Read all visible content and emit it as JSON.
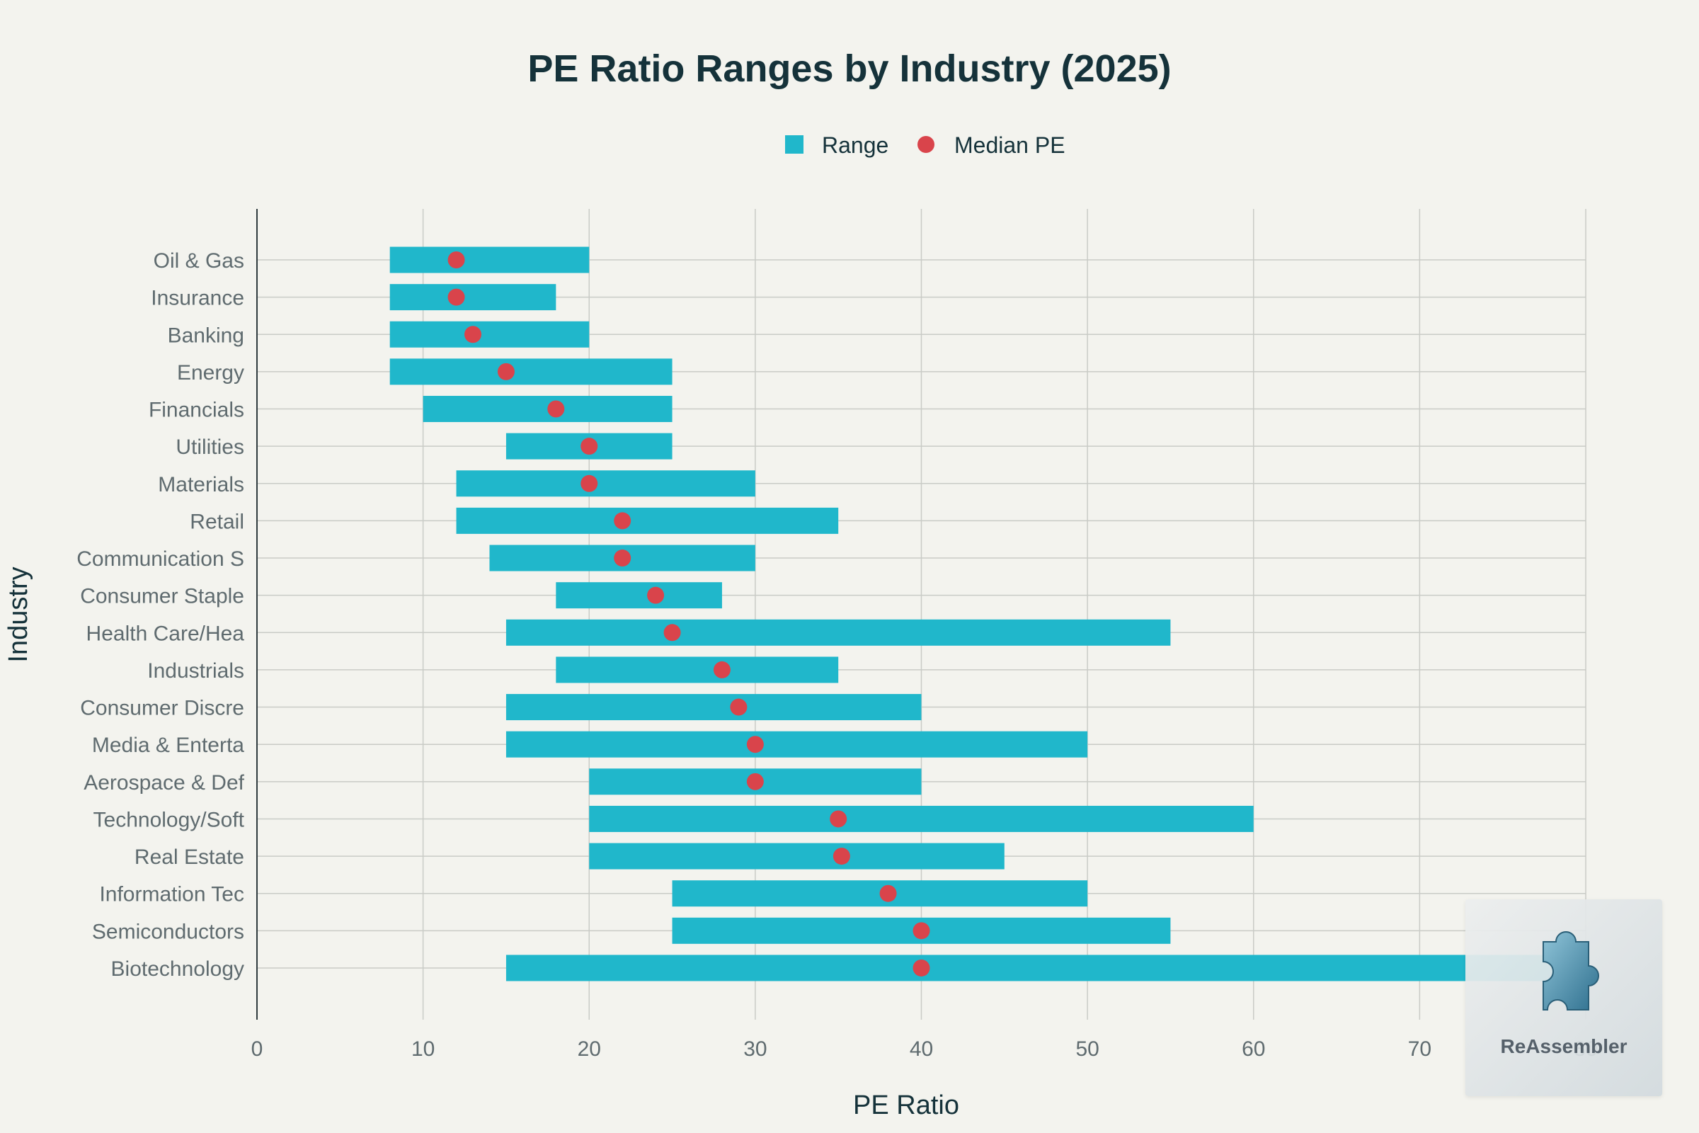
{
  "chart_data": {
    "type": "bar",
    "subtype": "horizontal-range-with-median",
    "title": "PE Ratio Ranges by Industry (2025)",
    "xlabel": "PE Ratio",
    "ylabel": "Industry",
    "xlim": [
      0,
      80
    ],
    "xticks": [
      0,
      10,
      20,
      30,
      40,
      50,
      60,
      70,
      80
    ],
    "grid": true,
    "legend_position": "top-center",
    "legend": [
      {
        "label": "Range",
        "marker": "square",
        "color": "#20b7cb"
      },
      {
        "label": "Median PE",
        "marker": "circle",
        "color": "#d9444b"
      }
    ],
    "categories": [
      "Oil & Gas",
      "Insurance",
      "Banking",
      "Energy",
      "Financials",
      "Utilities",
      "Materials",
      "Retail",
      "Communication S",
      "Consumer Staple",
      "Health Care/Hea",
      "Industrials",
      "Consumer Discre",
      "Media & Enterta",
      "Aerospace & Def",
      "Technology/Soft",
      "Real Estate",
      "Information Tec",
      "Semiconductors",
      "Biotechnology"
    ],
    "series": [
      {
        "name": "Range",
        "color": "#20b7cb",
        "low": [
          8,
          8,
          8,
          8,
          10,
          15,
          12,
          12,
          14,
          18,
          15,
          18,
          15,
          15,
          20,
          20,
          20,
          25,
          25,
          15
        ],
        "high": [
          20,
          18,
          20,
          25,
          25,
          25,
          30,
          35,
          30,
          28,
          55,
          35,
          40,
          50,
          40,
          60,
          45,
          50,
          55,
          80
        ]
      },
      {
        "name": "Median PE",
        "color": "#d9444b",
        "values": [
          12,
          12,
          13,
          15,
          18,
          20,
          20,
          22,
          22,
          24,
          25,
          28,
          29,
          30,
          30,
          35,
          35.2,
          38,
          40,
          40
        ]
      }
    ]
  },
  "watermark": {
    "text": "ReAssembler",
    "icon": "puzzle-piece-icon"
  }
}
